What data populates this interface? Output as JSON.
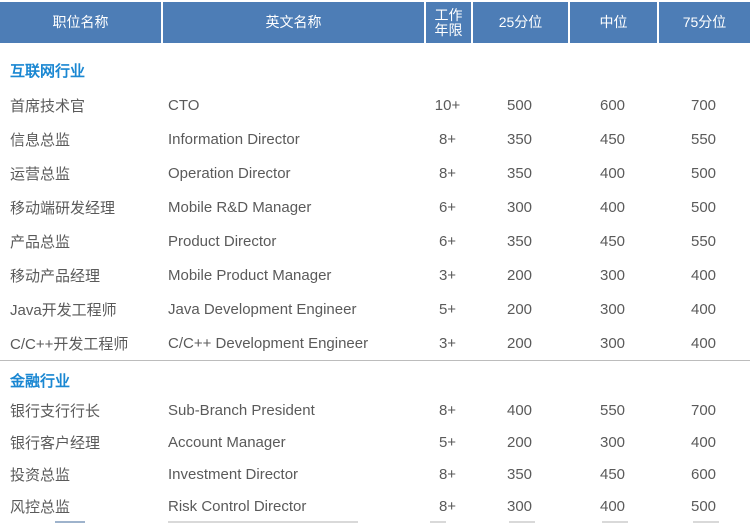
{
  "colors": {
    "header_bg": "#4d7db6",
    "header_text": "#ffffff",
    "section_title_text": "#1a87d2",
    "body_text": "#5a5a5a",
    "divider": "#bcbcbc"
  },
  "table": {
    "columns": [
      {
        "key": "position",
        "label": "职位名称"
      },
      {
        "key": "english",
        "label": "英文名称"
      },
      {
        "key": "years",
        "label": "工作年限",
        "label_top": "工作",
        "label_bottom": "年限"
      },
      {
        "key": "p25",
        "label": "25分位"
      },
      {
        "key": "p50",
        "label": "中位"
      },
      {
        "key": "p75",
        "label": "75分位"
      }
    ],
    "sections": [
      {
        "id": "internet",
        "title": "互联网行业",
        "rows": [
          {
            "position": "首席技术官",
            "english": "CTO",
            "years": "10+",
            "p25": "500",
            "p50": "600",
            "p75": "700"
          },
          {
            "position": "信息总监",
            "english": "Information Director",
            "years": "8+",
            "p25": "350",
            "p50": "450",
            "p75": "550"
          },
          {
            "position": "运营总监",
            "english": "Operation Director",
            "years": "8+",
            "p25": "350",
            "p50": "400",
            "p75": "500"
          },
          {
            "position": "移动端研发经理",
            "english": "Mobile R&D Manager",
            "years": "6+",
            "p25": "300",
            "p50": "400",
            "p75": "500"
          },
          {
            "position": "产品总监",
            "english": "Product Director",
            "years": "6+",
            "p25": "350",
            "p50": "450",
            "p75": "550"
          },
          {
            "position": "移动产品经理",
            "english": "Mobile Product Manager",
            "years": "3+",
            "p25": "200",
            "p50": "300",
            "p75": "400"
          },
          {
            "position": "Java开发工程师",
            "english": "Java Development Engineer",
            "years": "5+",
            "p25": "200",
            "p50": "300",
            "p75": "400"
          },
          {
            "position": "C/C++开发工程师",
            "english": "C/C++ Development Engineer",
            "years": "3+",
            "p25": "200",
            "p50": "300",
            "p75": "400"
          }
        ]
      },
      {
        "id": "finance",
        "title": "金融行业",
        "rows": [
          {
            "position": "银行支行行长",
            "english": "Sub-Branch President",
            "years": "8+",
            "p25": "400",
            "p50": "550",
            "p75": "700"
          },
          {
            "position": "银行客户经理",
            "english": "Account Manager",
            "years": "5+",
            "p25": "200",
            "p50": "300",
            "p75": "400"
          },
          {
            "position": "投资总监",
            "english": "Investment Director",
            "years": "8+",
            "p25": "350",
            "p50": "450",
            "p75": "600"
          },
          {
            "position": "风控总监",
            "english": "Risk Control Director",
            "years": "8+",
            "p25": "300",
            "p50": "400",
            "p75": "500"
          }
        ]
      }
    ]
  }
}
